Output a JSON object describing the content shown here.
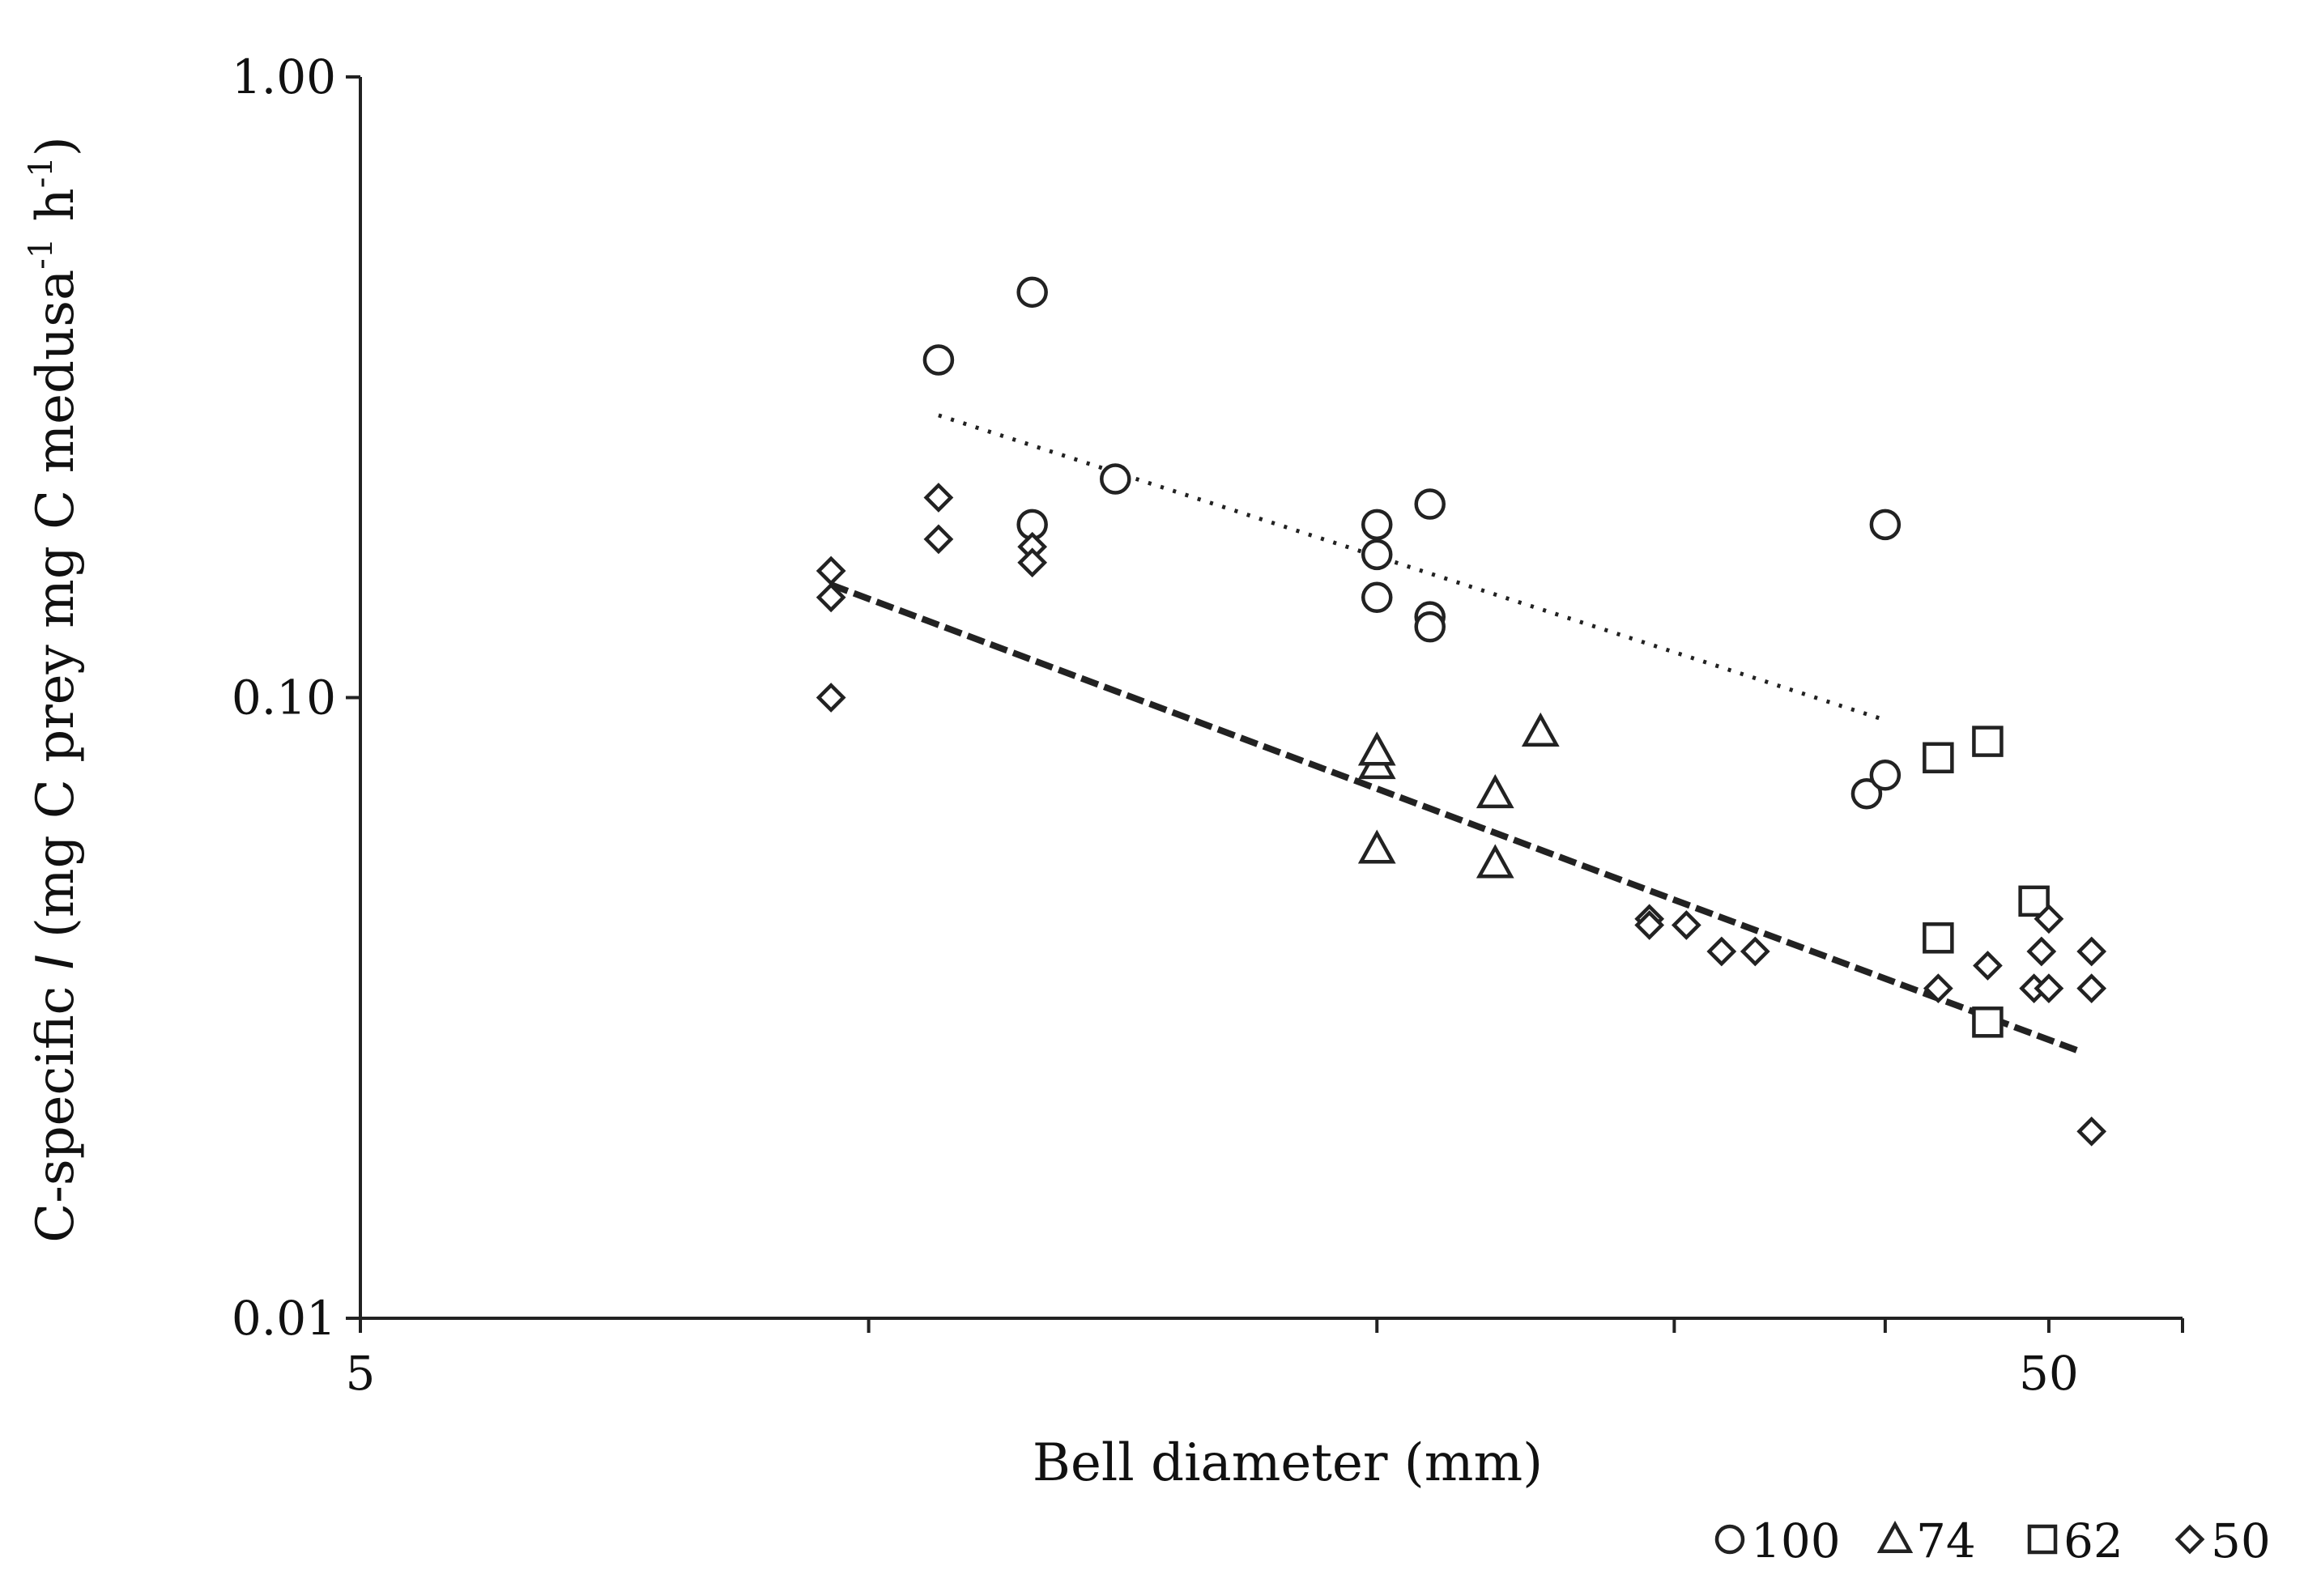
{
  "chart_data": {
    "type": "scatter",
    "title": "",
    "xlabel": "Bell diameter (mm)",
    "ylabel_parts": [
      "C-specific ",
      "I",
      " (mg C prey mg C medusa",
      "-1",
      " h",
      "-1",
      ")"
    ],
    "x_scale": "log",
    "y_scale": "log",
    "xlim": [
      5,
      60
    ],
    "ylim": [
      0.01,
      1.0
    ],
    "x_ticks": [
      5,
      50
    ],
    "x_tick_labels": [
      "5",
      "50"
    ],
    "x_minor_ticks": [
      10,
      20,
      30,
      40
    ],
    "y_ticks": [
      0.01,
      0.1,
      1.0
    ],
    "y_tick_labels": [
      "0.01",
      "0.10",
      "1.00"
    ],
    "grid": false,
    "legend_position": "bottom-right",
    "series": [
      {
        "name": "100",
        "marker": "circle",
        "points": [
          [
            11,
            0.35
          ],
          [
            12.5,
            0.45
          ],
          [
            12.5,
            0.19
          ],
          [
            14,
            0.225
          ],
          [
            20,
            0.19
          ],
          [
            20,
            0.17
          ],
          [
            20,
            0.145
          ],
          [
            21.5,
            0.205
          ],
          [
            21.5,
            0.135
          ],
          [
            21.5,
            0.13
          ],
          [
            39,
            0.07
          ],
          [
            40,
            0.075
          ],
          [
            40,
            0.19
          ]
        ]
      },
      {
        "name": "74",
        "marker": "triangle",
        "points": [
          [
            20,
            0.078
          ],
          [
            20,
            0.082
          ],
          [
            20,
            0.057
          ],
          [
            23.5,
            0.07
          ],
          [
            23.5,
            0.054
          ],
          [
            25,
            0.088
          ]
        ]
      },
      {
        "name": "62",
        "marker": "square",
        "points": [
          [
            43,
            0.08
          ],
          [
            46,
            0.085
          ],
          [
            43,
            0.041
          ],
          [
            46,
            0.03
          ],
          [
            49,
            0.047
          ]
        ]
      },
      {
        "name": "50",
        "marker": "diamond",
        "points": [
          [
            9.5,
            0.16
          ],
          [
            9.5,
            0.145
          ],
          [
            9.5,
            0.1
          ],
          [
            11,
            0.21
          ],
          [
            11,
            0.18
          ],
          [
            12.5,
            0.175
          ],
          [
            12.5,
            0.165
          ],
          [
            29,
            0.044
          ],
          [
            29,
            0.043
          ],
          [
            30.5,
            0.043
          ],
          [
            32,
            0.039
          ],
          [
            33.5,
            0.039
          ],
          [
            43,
            0.034
          ],
          [
            46,
            0.037
          ],
          [
            53,
            0.034
          ],
          [
            53,
            0.02
          ],
          [
            49.5,
            0.039
          ],
          [
            50,
            0.044
          ],
          [
            49,
            0.034
          ],
          [
            50,
            0.034
          ],
          [
            53,
            0.039
          ]
        ]
      }
    ],
    "trendlines": [
      {
        "style": "dotted",
        "x": [
          11,
          40
        ],
        "y": [
          0.285,
          0.092
        ]
      },
      {
        "style": "dashed",
        "x": [
          9.5,
          52
        ],
        "y": [
          0.152,
          0.027
        ]
      }
    ]
  },
  "legend": {
    "items": [
      {
        "marker": "circle",
        "label": "100"
      },
      {
        "marker": "triangle",
        "label": "74"
      },
      {
        "marker": "square",
        "label": "62"
      },
      {
        "marker": "diamond",
        "label": "50"
      }
    ]
  }
}
